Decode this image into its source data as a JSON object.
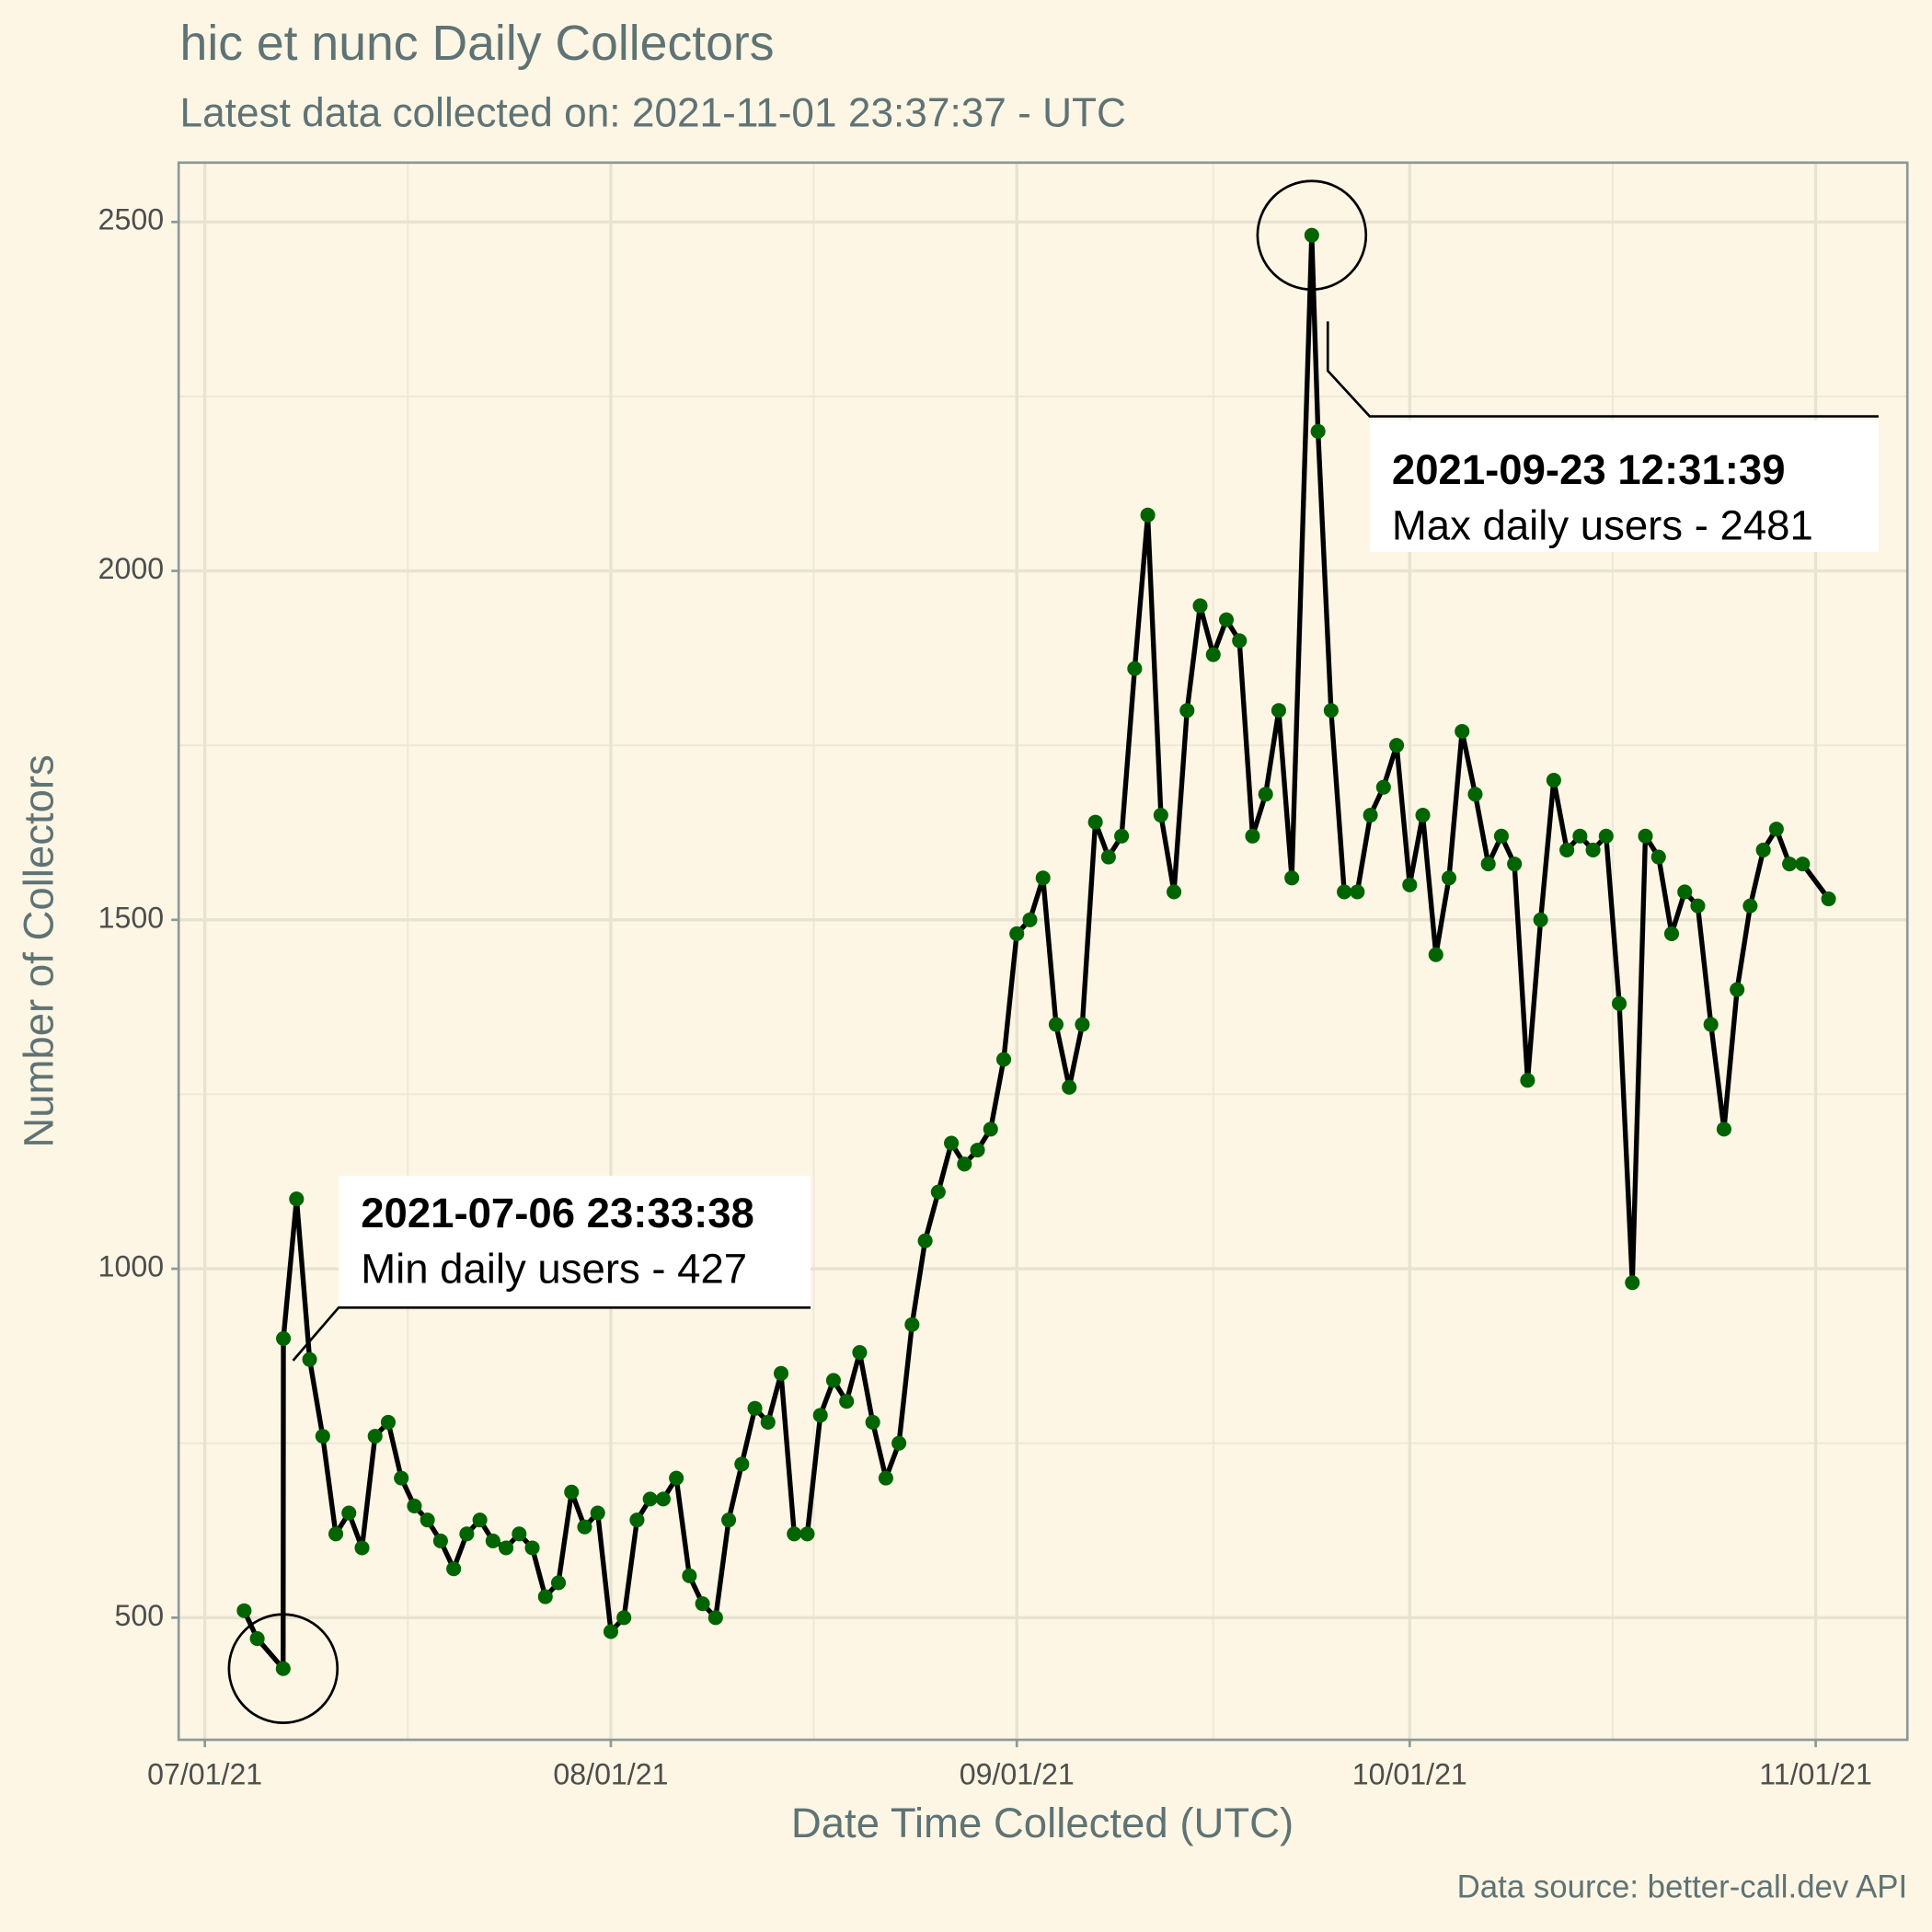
{
  "chart_data": {
    "type": "line",
    "title": "hic et nunc Daily Collectors",
    "subtitle": "Latest data collected on: 2021-11-01 23:37:37  - UTC",
    "xlabel": "Date Time Collected (UTC)",
    "ylabel": "Number of Collectors",
    "caption": "Data source: better-call.dev API",
    "x": [
      "2021-07-04",
      "2021-07-05",
      "2021-07-06 23:33:38",
      "2021-07-07",
      "2021-07-08",
      "2021-07-09",
      "2021-07-10",
      "2021-07-11",
      "2021-07-12",
      "2021-07-13",
      "2021-07-14",
      "2021-07-15",
      "2021-07-16",
      "2021-07-17",
      "2021-07-18",
      "2021-07-19",
      "2021-07-20",
      "2021-07-21",
      "2021-07-22",
      "2021-07-23",
      "2021-07-24",
      "2021-07-25",
      "2021-07-26",
      "2021-07-27",
      "2021-07-28",
      "2021-07-29",
      "2021-07-30",
      "2021-07-31",
      "2021-08-01",
      "2021-08-02",
      "2021-08-03",
      "2021-08-04",
      "2021-08-05",
      "2021-08-06",
      "2021-08-07",
      "2021-08-08",
      "2021-08-09",
      "2021-08-10",
      "2021-08-11",
      "2021-08-12",
      "2021-08-13",
      "2021-08-14",
      "2021-08-15",
      "2021-08-16",
      "2021-08-17",
      "2021-08-18",
      "2021-08-19",
      "2021-08-20",
      "2021-08-21",
      "2021-08-22",
      "2021-08-23",
      "2021-08-24",
      "2021-08-25",
      "2021-08-26",
      "2021-08-27",
      "2021-08-28",
      "2021-08-29",
      "2021-08-30",
      "2021-08-31",
      "2021-09-01",
      "2021-09-02",
      "2021-09-03",
      "2021-09-04",
      "2021-09-05",
      "2021-09-06",
      "2021-09-07",
      "2021-09-08",
      "2021-09-09",
      "2021-09-10",
      "2021-09-11",
      "2021-09-12",
      "2021-09-13",
      "2021-09-14",
      "2021-09-15",
      "2021-09-16",
      "2021-09-17",
      "2021-09-18",
      "2021-09-19",
      "2021-09-20",
      "2021-09-21",
      "2021-09-22",
      "2021-09-23 12:31:39",
      "2021-09-24",
      "2021-09-25",
      "2021-09-26",
      "2021-09-27",
      "2021-09-28",
      "2021-09-29",
      "2021-09-30",
      "2021-10-01",
      "2021-10-02",
      "2021-10-03",
      "2021-10-04",
      "2021-10-05",
      "2021-10-06",
      "2021-10-07",
      "2021-10-08",
      "2021-10-09",
      "2021-10-10",
      "2021-10-11",
      "2021-10-12",
      "2021-10-13",
      "2021-10-14",
      "2021-10-15",
      "2021-10-16",
      "2021-10-17",
      "2021-10-18",
      "2021-10-19",
      "2021-10-20",
      "2021-10-21",
      "2021-10-22",
      "2021-10-23",
      "2021-10-24",
      "2021-10-25",
      "2021-10-26",
      "2021-10-27",
      "2021-10-28",
      "2021-10-29",
      "2021-10-30",
      "2021-10-31",
      "2021-11-01 23:37:37"
    ],
    "values": [
      510,
      470,
      427,
      900,
      1100,
      870,
      760,
      620,
      650,
      600,
      760,
      780,
      700,
      660,
      640,
      610,
      570,
      620,
      640,
      610,
      600,
      620,
      600,
      530,
      550,
      680,
      630,
      650,
      480,
      500,
      640,
      670,
      670,
      700,
      560,
      520,
      500,
      640,
      720,
      800,
      780,
      850,
      620,
      620,
      790,
      840,
      810,
      880,
      780,
      700,
      750,
      920,
      1040,
      1110,
      1180,
      1150,
      1170,
      1200,
      1300,
      1480,
      1500,
      1560,
      1350,
      1260,
      1350,
      1640,
      1590,
      1620,
      1860,
      2080,
      1650,
      1540,
      1800,
      1950,
      1880,
      1930,
      1900,
      1620,
      1680,
      1800,
      1560,
      2481,
      2200,
      1800,
      1540,
      1540,
      1650,
      1690,
      1750,
      1550,
      1650,
      1450,
      1560,
      1770,
      1680,
      1580,
      1620,
      1580,
      1270,
      1500,
      1700,
      1600,
      1620,
      1600,
      1620,
      1380,
      980,
      1620,
      1590,
      1480,
      1540,
      1520,
      1350,
      1200,
      1400,
      1520,
      1600,
      1630,
      1580,
      1580,
      1530
    ],
    "point_color": "#006400",
    "line_color": "#000000",
    "xlim": [
      "2021-06-29",
      "2021-11-08"
    ],
    "xticks": [
      {
        "value": "2021-07-01",
        "label": "07/01/21"
      },
      {
        "value": "2021-08-01",
        "label": "08/01/21"
      },
      {
        "value": "2021-09-01",
        "label": "09/01/21"
      },
      {
        "value": "2021-10-01",
        "label": "10/01/21"
      },
      {
        "value": "2021-11-01",
        "label": "11/01/21"
      }
    ],
    "ylim": [
      325,
      2585
    ],
    "yticks": [
      500,
      1000,
      1500,
      2000,
      2500
    ],
    "grid": true,
    "annotations": [
      {
        "title": "2021-07-06 23:33:38",
        "text": "Min daily users - 427"
      },
      {
        "title": "2021-09-23 12:31:39",
        "text": "Max daily users - 2481"
      }
    ]
  }
}
